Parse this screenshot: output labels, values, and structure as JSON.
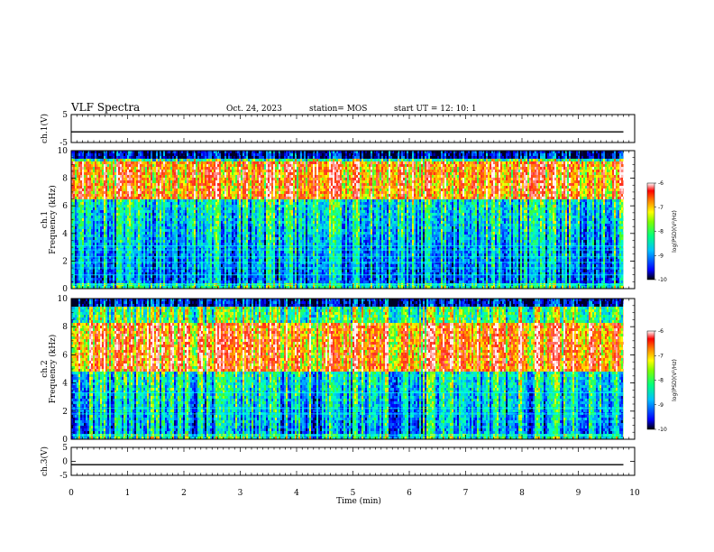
{
  "header": {
    "title": "VLF Spectra",
    "date": "Oct. 24, 2023",
    "station": "station= MOS",
    "start": "start  UT =   12: 10: 1"
  },
  "chart_data": [
    {
      "type": "line",
      "name": "ch1-waveform",
      "ylabel": "ch.1(V)",
      "ylim": [
        -5,
        5
      ],
      "yticks": [
        "5",
        "-5"
      ],
      "x": [
        0,
        9.8
      ],
      "y": [
        -1.2,
        -1.2
      ]
    },
    {
      "type": "heatmap",
      "name": "ch1-spectrogram",
      "ylabel": "ch.1\nFrequency (kHz)",
      "ylabel_lines": [
        "ch.1",
        "Frequency (kHz)"
      ],
      "ylim": [
        0,
        10
      ],
      "yticks": [
        "0",
        "2",
        "4",
        "6",
        "8",
        "10"
      ],
      "xlim": [
        0,
        10
      ],
      "data_xmax": 9.8,
      "colorbar": {
        "label": "log(PSD)(V²/Hz)",
        "range": [
          -10,
          -6
        ],
        "ticks": [
          "-6",
          "-7",
          "-8",
          "-9",
          "-10"
        ]
      },
      "dominant_band_khz": [
        6.5,
        9.3
      ],
      "lines_khz": [
        0.3,
        1.0,
        1.5,
        1.9,
        2.3,
        2.8,
        3.1
      ]
    },
    {
      "type": "heatmap",
      "name": "ch2-spectrogram",
      "ylabel": "ch.2\nFrequency (kHz)",
      "ylabel_lines": [
        "ch.2",
        "Frequency (kHz)"
      ],
      "ylim": [
        0,
        10
      ],
      "yticks": [
        "0",
        "2",
        "4",
        "6",
        "8",
        "10"
      ],
      "xlim": [
        0,
        10
      ],
      "data_xmax": 9.8,
      "colorbar": {
        "label": "log(PSD)(V²/Hz)",
        "range": [
          -10,
          -6
        ],
        "ticks": [
          "-6",
          "-7",
          "-8",
          "-9",
          "-10"
        ]
      },
      "dominant_band_khz": [
        5.0,
        8.3
      ],
      "lines_khz": [
        0.3,
        1.8,
        2.2,
        3.3
      ]
    },
    {
      "type": "line",
      "name": "ch3-waveform",
      "ylabel": "ch.3(V)",
      "ylim": [
        -5,
        5
      ],
      "yticks": [
        "5",
        "0",
        "-5"
      ],
      "x": [
        0,
        9.8
      ],
      "y": [
        -1.2,
        -1.2
      ]
    }
  ],
  "xaxis": {
    "label": "Time  (min)",
    "ticks": [
      "0",
      "1",
      "2",
      "3",
      "4",
      "5",
      "6",
      "7",
      "8",
      "9",
      "10"
    ],
    "range": [
      0,
      10
    ]
  },
  "colormap": [
    "#000060",
    "#0000ff",
    "#00a0ff",
    "#00ffcc",
    "#40ff40",
    "#ffff00",
    "#ff8000",
    "#ff2020",
    "#ffffff"
  ]
}
